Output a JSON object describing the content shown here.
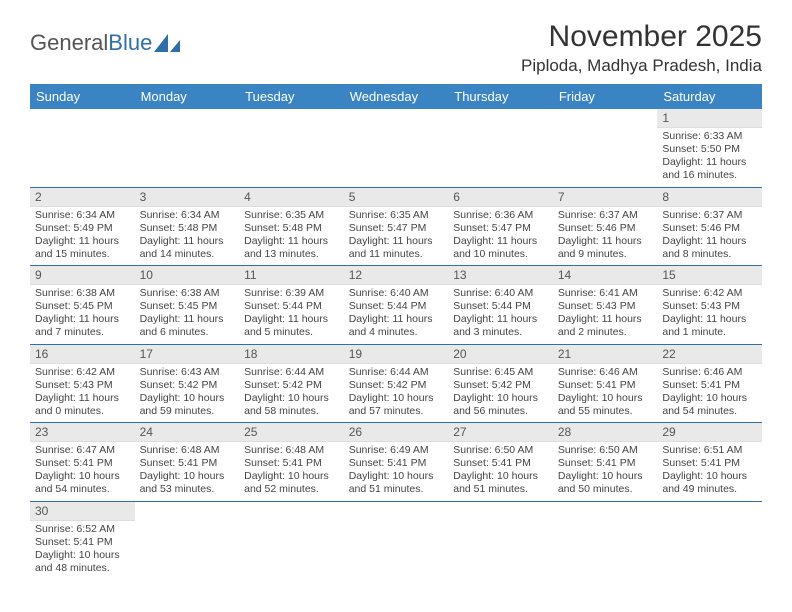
{
  "logo": {
    "text1": "General",
    "text2": "Blue"
  },
  "header": {
    "month_title": "November 2025",
    "location": "Piploda, Madhya Pradesh, India"
  },
  "colors": {
    "header_bg": "#3b84c4",
    "header_text": "#ffffff",
    "row_border": "#2f6fa7",
    "daynum_bg": "#e9e9e9",
    "logo_blue": "#2f6fa7"
  },
  "weekdays": [
    "Sunday",
    "Monday",
    "Tuesday",
    "Wednesday",
    "Thursday",
    "Friday",
    "Saturday"
  ],
  "weeks": [
    [
      null,
      null,
      null,
      null,
      null,
      null,
      {
        "n": "1",
        "sunrise": "Sunrise: 6:33 AM",
        "sunset": "Sunset: 5:50 PM",
        "daylight": "Daylight: 11 hours and 16 minutes."
      }
    ],
    [
      {
        "n": "2",
        "sunrise": "Sunrise: 6:34 AM",
        "sunset": "Sunset: 5:49 PM",
        "daylight": "Daylight: 11 hours and 15 minutes."
      },
      {
        "n": "3",
        "sunrise": "Sunrise: 6:34 AM",
        "sunset": "Sunset: 5:48 PM",
        "daylight": "Daylight: 11 hours and 14 minutes."
      },
      {
        "n": "4",
        "sunrise": "Sunrise: 6:35 AM",
        "sunset": "Sunset: 5:48 PM",
        "daylight": "Daylight: 11 hours and 13 minutes."
      },
      {
        "n": "5",
        "sunrise": "Sunrise: 6:35 AM",
        "sunset": "Sunset: 5:47 PM",
        "daylight": "Daylight: 11 hours and 11 minutes."
      },
      {
        "n": "6",
        "sunrise": "Sunrise: 6:36 AM",
        "sunset": "Sunset: 5:47 PM",
        "daylight": "Daylight: 11 hours and 10 minutes."
      },
      {
        "n": "7",
        "sunrise": "Sunrise: 6:37 AM",
        "sunset": "Sunset: 5:46 PM",
        "daylight": "Daylight: 11 hours and 9 minutes."
      },
      {
        "n": "8",
        "sunrise": "Sunrise: 6:37 AM",
        "sunset": "Sunset: 5:46 PM",
        "daylight": "Daylight: 11 hours and 8 minutes."
      }
    ],
    [
      {
        "n": "9",
        "sunrise": "Sunrise: 6:38 AM",
        "sunset": "Sunset: 5:45 PM",
        "daylight": "Daylight: 11 hours and 7 minutes."
      },
      {
        "n": "10",
        "sunrise": "Sunrise: 6:38 AM",
        "sunset": "Sunset: 5:45 PM",
        "daylight": "Daylight: 11 hours and 6 minutes."
      },
      {
        "n": "11",
        "sunrise": "Sunrise: 6:39 AM",
        "sunset": "Sunset: 5:44 PM",
        "daylight": "Daylight: 11 hours and 5 minutes."
      },
      {
        "n": "12",
        "sunrise": "Sunrise: 6:40 AM",
        "sunset": "Sunset: 5:44 PM",
        "daylight": "Daylight: 11 hours and 4 minutes."
      },
      {
        "n": "13",
        "sunrise": "Sunrise: 6:40 AM",
        "sunset": "Sunset: 5:44 PM",
        "daylight": "Daylight: 11 hours and 3 minutes."
      },
      {
        "n": "14",
        "sunrise": "Sunrise: 6:41 AM",
        "sunset": "Sunset: 5:43 PM",
        "daylight": "Daylight: 11 hours and 2 minutes."
      },
      {
        "n": "15",
        "sunrise": "Sunrise: 6:42 AM",
        "sunset": "Sunset: 5:43 PM",
        "daylight": "Daylight: 11 hours and 1 minute."
      }
    ],
    [
      {
        "n": "16",
        "sunrise": "Sunrise: 6:42 AM",
        "sunset": "Sunset: 5:43 PM",
        "daylight": "Daylight: 11 hours and 0 minutes."
      },
      {
        "n": "17",
        "sunrise": "Sunrise: 6:43 AM",
        "sunset": "Sunset: 5:42 PM",
        "daylight": "Daylight: 10 hours and 59 minutes."
      },
      {
        "n": "18",
        "sunrise": "Sunrise: 6:44 AM",
        "sunset": "Sunset: 5:42 PM",
        "daylight": "Daylight: 10 hours and 58 minutes."
      },
      {
        "n": "19",
        "sunrise": "Sunrise: 6:44 AM",
        "sunset": "Sunset: 5:42 PM",
        "daylight": "Daylight: 10 hours and 57 minutes."
      },
      {
        "n": "20",
        "sunrise": "Sunrise: 6:45 AM",
        "sunset": "Sunset: 5:42 PM",
        "daylight": "Daylight: 10 hours and 56 minutes."
      },
      {
        "n": "21",
        "sunrise": "Sunrise: 6:46 AM",
        "sunset": "Sunset: 5:41 PM",
        "daylight": "Daylight: 10 hours and 55 minutes."
      },
      {
        "n": "22",
        "sunrise": "Sunrise: 6:46 AM",
        "sunset": "Sunset: 5:41 PM",
        "daylight": "Daylight: 10 hours and 54 minutes."
      }
    ],
    [
      {
        "n": "23",
        "sunrise": "Sunrise: 6:47 AM",
        "sunset": "Sunset: 5:41 PM",
        "daylight": "Daylight: 10 hours and 54 minutes."
      },
      {
        "n": "24",
        "sunrise": "Sunrise: 6:48 AM",
        "sunset": "Sunset: 5:41 PM",
        "daylight": "Daylight: 10 hours and 53 minutes."
      },
      {
        "n": "25",
        "sunrise": "Sunrise: 6:48 AM",
        "sunset": "Sunset: 5:41 PM",
        "daylight": "Daylight: 10 hours and 52 minutes."
      },
      {
        "n": "26",
        "sunrise": "Sunrise: 6:49 AM",
        "sunset": "Sunset: 5:41 PM",
        "daylight": "Daylight: 10 hours and 51 minutes."
      },
      {
        "n": "27",
        "sunrise": "Sunrise: 6:50 AM",
        "sunset": "Sunset: 5:41 PM",
        "daylight": "Daylight: 10 hours and 51 minutes."
      },
      {
        "n": "28",
        "sunrise": "Sunrise: 6:50 AM",
        "sunset": "Sunset: 5:41 PM",
        "daylight": "Daylight: 10 hours and 50 minutes."
      },
      {
        "n": "29",
        "sunrise": "Sunrise: 6:51 AM",
        "sunset": "Sunset: 5:41 PM",
        "daylight": "Daylight: 10 hours and 49 minutes."
      }
    ],
    [
      {
        "n": "30",
        "sunrise": "Sunrise: 6:52 AM",
        "sunset": "Sunset: 5:41 PM",
        "daylight": "Daylight: 10 hours and 48 minutes."
      },
      null,
      null,
      null,
      null,
      null,
      null
    ]
  ]
}
